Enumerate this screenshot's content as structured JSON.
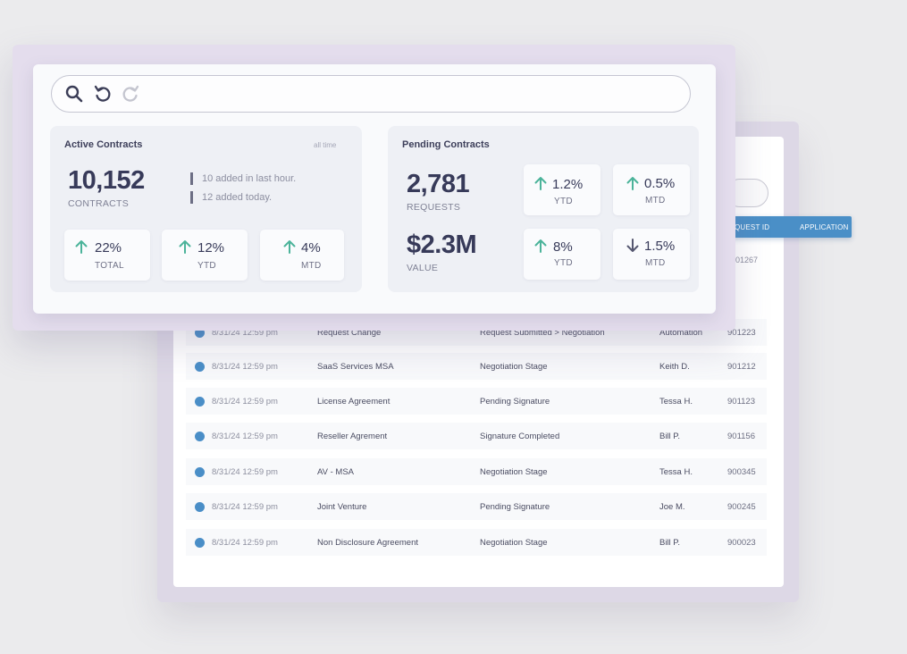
{
  "active": {
    "title": "Active Contracts",
    "note": "all time",
    "count": "10,152",
    "count_label": "CONTRACTS",
    "notes": [
      "10 added in last hour.",
      "12 added today."
    ],
    "stats": [
      {
        "value": "22%",
        "label": "TOTAL",
        "direction": "up"
      },
      {
        "value": "12%",
        "label": "YTD",
        "direction": "up"
      },
      {
        "value": "4%",
        "label": "MTD",
        "direction": "up"
      }
    ]
  },
  "pending": {
    "title": "Pending Contracts",
    "requests": "2,781",
    "requests_label": "REQUESTS",
    "value": "$2.3M",
    "value_label": "VALUE",
    "stats": [
      {
        "value": "1.2%",
        "label": "YTD",
        "direction": "up"
      },
      {
        "value": "0.5%",
        "label": "MTD",
        "direction": "up"
      },
      {
        "value": "8%",
        "label": "YTD",
        "direction": "up"
      },
      {
        "value": "1.5%",
        "label": "MTD",
        "direction": "down"
      }
    ]
  },
  "table": {
    "headers": {
      "request_id": "QUEST ID",
      "application": "APPLICATION"
    },
    "partial_row_id": "901267",
    "rows": [
      {
        "date": "8/31/24 12:59 pm",
        "title": "Request Change",
        "stage": "Request Submitted > Negotiation",
        "person": "Automation",
        "id": "901223"
      },
      {
        "date": "8/31/24 12:59 pm",
        "title": "SaaS Services MSA",
        "stage": "Negotiation Stage",
        "person": "Keith D.",
        "id": "901212"
      },
      {
        "date": "8/31/24 12:59 pm",
        "title": "License Agreement",
        "stage": "Pending Signature",
        "person": "Tessa H.",
        "id": "901123"
      },
      {
        "date": "8/31/24 12:59 pm",
        "title": "Reseller Agrement",
        "stage": "Signature Completed",
        "person": "Bill P.",
        "id": "901156"
      },
      {
        "date": "8/31/24 12:59 pm",
        "title": "AV - MSA",
        "stage": "Negotiation Stage",
        "person": "Tessa H.",
        "id": "900345"
      },
      {
        "date": "8/31/24 12:59 pm",
        "title": "Joint Venture",
        "stage": "Pending Signature",
        "person": "Joe M.",
        "id": "900245"
      },
      {
        "date": "8/31/24 12:59 pm",
        "title": "Non Disclosure Agreement",
        "stage": "Negotiation Stage",
        "person": "Bill P.",
        "id": "900023"
      }
    ]
  },
  "colors": {
    "accent_blue": "#4a8fc7",
    "up_arrow": "#4bb39a",
    "down_arrow": "#555770"
  },
  "icons": {
    "search": "search-icon",
    "undo": "undo-icon",
    "redo": "redo-icon"
  }
}
